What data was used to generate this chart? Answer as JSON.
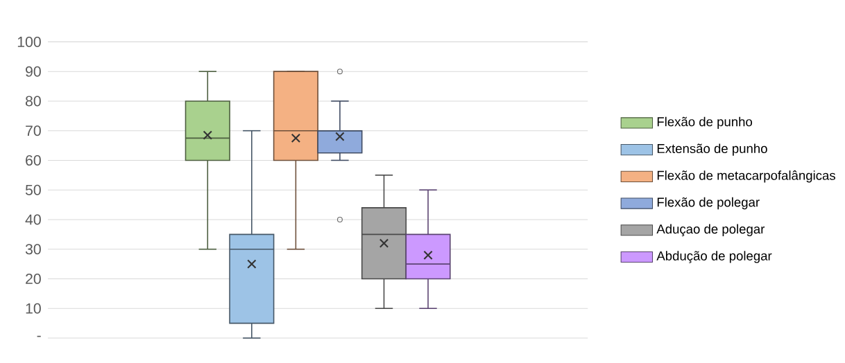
{
  "chart_data": {
    "type": "box",
    "categories": [
      null
    ],
    "series": [
      {
        "name": "Flexão de punho",
        "color": "#a9d18e",
        "boxes": [
          {
            "low": 30,
            "q1": 60,
            "median": 67.5,
            "q3": 80,
            "high": 90,
            "mean": 68.5
          }
        ]
      },
      {
        "name": "Extensão de punho",
        "color": "#9dc3e6",
        "boxes": [
          {
            "low": 0,
            "q1": 5,
            "median": 30,
            "q3": 35,
            "high": 70,
            "mean": 25
          }
        ]
      },
      {
        "name": "Flexão de metacarpofalângicas",
        "color": "#f4b183",
        "boxes": [
          {
            "low": 30,
            "q1": 60,
            "median": 70,
            "q3": 90,
            "high": 90,
            "mean": 67.5
          }
        ]
      },
      {
        "name": "Flexão de polegar",
        "color": "#8faadc",
        "boxes": [
          {
            "low": 60,
            "q1": 62.5,
            "median": 70,
            "q3": 70,
            "high": 80,
            "mean": 68,
            "outliers": [
              90,
              40
            ]
          }
        ]
      },
      {
        "name": "Aduçao de polegar",
        "color": "#a5a5a5",
        "boxes": [
          {
            "low": 10,
            "q1": 20,
            "median": 35,
            "q3": 44,
            "high": 55,
            "mean": 32
          }
        ]
      },
      {
        "name": "Abdução de polegar",
        "color": "#cc99ff",
        "boxes": [
          {
            "low": 10,
            "q1": 20,
            "median": 25,
            "q3": 35,
            "high": 50,
            "mean": 28
          }
        ]
      }
    ],
    "ylim": [
      0,
      100
    ],
    "yticks": [
      {
        "value": 0,
        "label": "-"
      },
      10,
      20,
      30,
      40,
      50,
      60,
      70,
      80,
      90,
      100
    ],
    "grid": "y",
    "legend": "right"
  }
}
